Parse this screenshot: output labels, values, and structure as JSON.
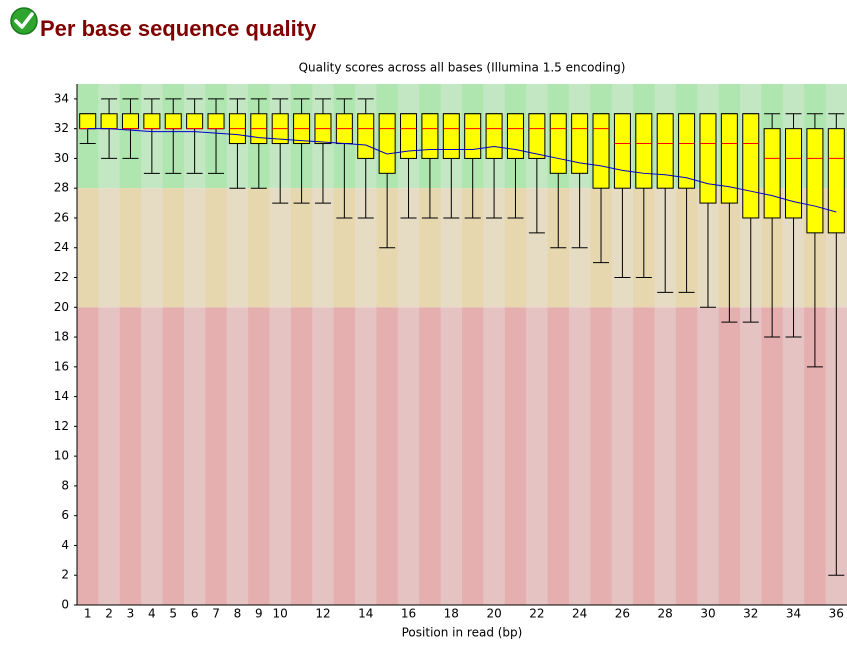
{
  "header": {
    "title": "Per base sequence quality"
  },
  "chart_data": {
    "type": "box",
    "title": "Quality scores across all bases (Illumina 1.5 encoding)",
    "x_label": "Position in read (bp)",
    "categories": [
      "1",
      "2",
      "3",
      "4",
      "5",
      "6",
      "7",
      "8",
      "9",
      "10",
      null,
      "12",
      null,
      "14",
      null,
      "16",
      null,
      "18",
      null,
      "20",
      null,
      "22",
      null,
      "24",
      null,
      "26",
      null,
      "28",
      null,
      "30",
      null,
      "32",
      null,
      "34",
      null,
      "36"
    ],
    "lower_whisker": [
      31,
      30,
      30,
      29,
      29,
      29,
      29,
      28,
      28,
      27,
      27,
      27,
      26,
      26,
      24,
      26,
      26,
      26,
      26,
      26,
      26,
      25,
      24,
      24,
      23,
      22,
      22,
      21,
      21,
      20,
      19,
      19,
      18,
      18,
      16,
      2
    ],
    "q1": [
      32,
      32,
      32,
      32,
      32,
      32,
      32,
      31,
      31,
      31,
      31,
      31,
      31,
      30,
      29,
      30,
      30,
      30,
      30,
      30,
      30,
      30,
      29,
      29,
      28,
      28,
      28,
      28,
      28,
      27,
      27,
      26,
      26,
      26,
      25,
      25
    ],
    "median": [
      32,
      32,
      32,
      32,
      32,
      32,
      32,
      32,
      32,
      32,
      32,
      32,
      32,
      32,
      32,
      32,
      32,
      32,
      32,
      32,
      32,
      32,
      32,
      32,
      32,
      31,
      31,
      31,
      31,
      31,
      31,
      31,
      30,
      30,
      30,
      30
    ],
    "q3": [
      33,
      33,
      33,
      33,
      33,
      33,
      33,
      33,
      33,
      33,
      33,
      33,
      33,
      33,
      33,
      33,
      33,
      33,
      33,
      33,
      33,
      33,
      33,
      33,
      33,
      33,
      33,
      33,
      33,
      33,
      33,
      33,
      32,
      32,
      32,
      32
    ],
    "upper_whisker": [
      33,
      34,
      34,
      34,
      34,
      34,
      34,
      34,
      34,
      34,
      34,
      34,
      34,
      34,
      33,
      33,
      33,
      33,
      33,
      33,
      33,
      33,
      33,
      33,
      33,
      33,
      33,
      33,
      33,
      33,
      33,
      33,
      33,
      33,
      33,
      33
    ],
    "mean": [
      32,
      32,
      31.9,
      31.8,
      31.8,
      31.8,
      31.7,
      31.6,
      31.4,
      31.3,
      31.2,
      31.1,
      31.0,
      30.9,
      30.3,
      30.5,
      30.6,
      30.6,
      30.6,
      30.8,
      30.6,
      30.3,
      30.0,
      29.7,
      29.5,
      29.2,
      29.0,
      28.9,
      28.7,
      28.3,
      28.1,
      27.8,
      27.5,
      27.1,
      26.8,
      26.4
    ],
    "box_color": "#ffff00",
    "median_color": "#ff0000",
    "mean_color": "#0000cc",
    "zones": [
      {
        "from": 28,
        "to": 35,
        "colors": [
          "#afe6af",
          "#c3e6c3"
        ]
      },
      {
        "from": 20,
        "to": 28,
        "colors": [
          "#e6d7af",
          "#e6dcc3"
        ]
      },
      {
        "from": 0,
        "to": 20,
        "colors": [
          "#e6afaf",
          "#e6c3c3"
        ]
      }
    ],
    "ylim": [
      0,
      35
    ],
    "yticks": [
      0,
      2,
      4,
      6,
      8,
      10,
      12,
      14,
      16,
      18,
      20,
      22,
      24,
      26,
      28,
      30,
      32,
      34
    ]
  }
}
